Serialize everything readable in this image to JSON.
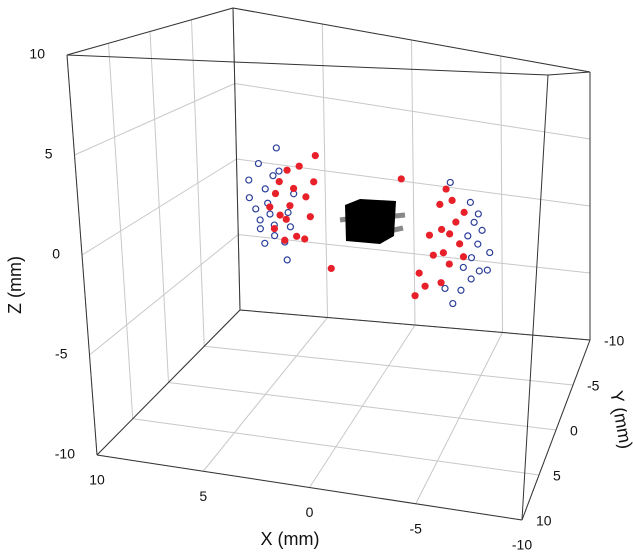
{
  "chart_data": {
    "type": "scatter3d",
    "xlabel": "X (mm)",
    "ylabel": "Y (mm)",
    "zlabel": "Z (mm)",
    "xlim": [
      -10,
      10
    ],
    "ylim": [
      -10,
      10
    ],
    "zlim": [
      -10,
      10
    ],
    "xticks": [
      -10,
      -5,
      0,
      5,
      10
    ],
    "yticks": [
      -10,
      -5,
      0,
      5,
      10
    ],
    "zticks": [
      -10,
      -5,
      0,
      5,
      10
    ],
    "grid": true,
    "series": [
      {
        "color": "#2b3f9a",
        "marker": "open",
        "x": [
          4.1,
          5.0,
          4.3,
          5.5,
          4.7,
          5.5,
          4.6,
          5.2,
          3.6,
          5.0,
          4.3,
          3.5,
          5.0,
          4.3,
          4.8,
          3.7,
          4.0,
          3.3,
          4.5,
          3.8,
          -4.4,
          -5.4,
          -5.8,
          -5.6,
          -6.0,
          -5.3,
          -5.8,
          -6.4,
          -5.5,
          -5.1,
          -5.9,
          -6.3,
          -5.5,
          -5.0,
          -4.6,
          -4.2
        ],
        "y": [
          0,
          0,
          0,
          0,
          0,
          0,
          0,
          0,
          0,
          0,
          0,
          0,
          0,
          0,
          0,
          0,
          0,
          0,
          0,
          0,
          0,
          0,
          0,
          0,
          0,
          0,
          0,
          0,
          0,
          0,
          0,
          0,
          0,
          0,
          0,
          0
        ],
        "z": [
          4.1,
          3.1,
          2.5,
          2.1,
          1.7,
          1.1,
          0.9,
          0.5,
          0.5,
          -0.1,
          -0.3,
          -0.3,
          -0.6,
          -0.9,
          -1.4,
          -2.2,
          2.8,
          1.6,
          0.3,
          -1.2,
          3.2,
          2.2,
          1.6,
          1.1,
          0.7,
          0.3,
          -0.1,
          -0.5,
          -0.9,
          -1.5,
          -1.6,
          -1.5,
          -2.1,
          -2.8,
          -3.6,
          -2.8
        ]
      },
      {
        "color": "#e8202a",
        "marker": "filled",
        "x": [
          2.2,
          3.0,
          3.6,
          4.0,
          2.3,
          3.3,
          4.2,
          4.5,
          3.5,
          2.7,
          2.5,
          3.7,
          4.3,
          3.2,
          3.8,
          2.8,
          1.5,
          4.0,
          -2.0,
          -4.2,
          -3.9,
          -4.5,
          -5.1,
          -4.7,
          -4.0,
          -4.4,
          -4.9,
          -3.4,
          -4.1,
          -3.6,
          -5.1,
          -2.9,
          -4.0,
          -2.7,
          -4.4,
          -3.2
        ],
        "y": [
          0,
          0,
          0,
          0,
          0,
          0,
          0,
          0,
          0,
          0,
          0,
          0,
          0,
          0,
          0,
          0,
          0,
          0,
          0,
          0,
          0,
          0,
          0,
          0,
          0,
          0,
          0,
          0,
          0,
          0,
          0,
          0,
          0,
          0,
          0,
          0
        ],
        "z": [
          3.9,
          3.2,
          2.9,
          2.2,
          2.4,
          1.9,
          1.5,
          0.7,
          0.9,
          1.5,
          0.4,
          0.1,
          -0.5,
          -0.8,
          -1.1,
          -0.9,
          -2.4,
          0.3,
          3.1,
          2.8,
          1.9,
          2.2,
          1.6,
          1.0,
          0.5,
          0.3,
          -0.2,
          0.1,
          -0.8,
          -1.0,
          -0.9,
          -2.1,
          -2.5,
          -3.4,
          -1.4,
          -2.8
        ]
      }
    ]
  }
}
